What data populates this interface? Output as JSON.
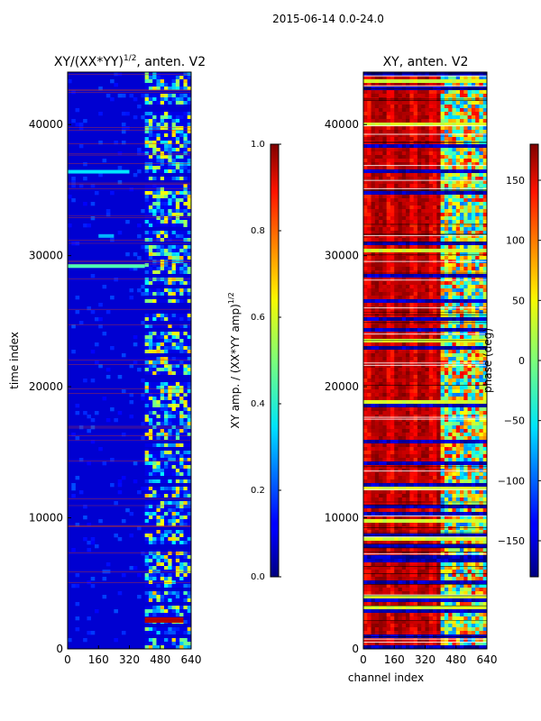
{
  "figure": {
    "suptitle": "2015-06-14 0.0-24.0",
    "xlabel": "channel index",
    "ylabel": "time index"
  },
  "chart_data": [
    {
      "type": "heatmap",
      "title_main": "XY/(XX*YY)",
      "title_sup": "1/2",
      "title_rest": ", anten. V2",
      "xlim": [
        0,
        640
      ],
      "ylim": [
        0,
        44000
      ],
      "xticks": [
        0,
        160,
        320,
        480,
        640
      ],
      "yticks": [
        0,
        10000,
        20000,
        30000,
        40000
      ],
      "colormap": "jet",
      "colorbar": {
        "range": [
          0.0,
          1.0
        ],
        "ticks": [
          "0.0",
          "0.2",
          "0.4",
          "0.6",
          "0.8",
          "1.0"
        ],
        "label_main": "XY amp. / (XX*YY amp)",
        "label_sup": "1/2"
      },
      "dominant_value": 0.08,
      "bright_channel_range": [
        400,
        640
      ],
      "features": [
        {
          "kind": "streak",
          "y": 29200,
          "x": [
            0,
            400
          ],
          "value": 0.45
        },
        {
          "kind": "streak",
          "y": 36400,
          "x": [
            0,
            320
          ],
          "value": 0.35
        },
        {
          "kind": "streak",
          "y": 31500,
          "x": [
            160,
            240
          ],
          "value": 0.3
        },
        {
          "kind": "hot_band",
          "y": 2200,
          "x": [
            400,
            600
          ],
          "value": 0.95
        }
      ]
    },
    {
      "type": "heatmap",
      "title": "XY, anten. V2",
      "xlim": [
        0,
        640
      ],
      "ylim": [
        0,
        44000
      ],
      "xticks": [
        0,
        160,
        320,
        480,
        640
      ],
      "yticks": [
        0,
        10000,
        20000,
        30000,
        40000
      ],
      "colormap": "jet",
      "colorbar": {
        "range": [
          -180,
          180
        ],
        "ticks": [
          "150",
          "100",
          "50",
          "0",
          "−50",
          "−100",
          "−150"
        ],
        "tick_values": [
          150,
          100,
          50,
          0,
          -50,
          -100,
          -150
        ],
        "label": "phase (deg)"
      },
      "dominant_value": 150,
      "noisy_channel_range": [
        400,
        640
      ]
    }
  ]
}
